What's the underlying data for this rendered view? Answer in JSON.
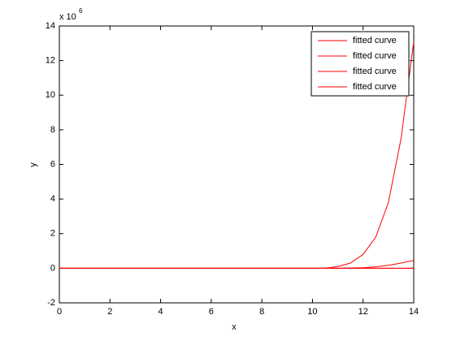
{
  "chart_data": {
    "type": "line",
    "x_label": "x",
    "y_label": "y",
    "y_multiplier": {
      "base": "x 10",
      "exponent": "6"
    },
    "x": [
      0,
      0.5,
      1,
      1.5,
      2,
      2.5,
      3,
      3.5,
      4,
      4.5,
      5,
      5.5,
      6,
      6.5,
      7,
      7.5,
      8,
      8.5,
      9,
      9.5,
      10,
      10.5,
      11,
      11.5,
      12,
      12.5,
      13,
      13.5,
      14
    ],
    "series": [
      {
        "name": "fitted curve",
        "color": "#ff0000",
        "values": [
          0,
          0,
          0,
          0,
          0,
          0,
          0,
          0,
          0,
          0,
          0,
          0,
          0,
          0,
          0,
          0,
          0,
          0,
          0,
          0,
          0,
          0,
          0.1,
          0.3,
          0.8,
          1.8,
          3.8,
          7.5,
          13.1
        ]
      },
      {
        "name": "fitted curve",
        "color": "#ff0000",
        "values": [
          0,
          0,
          0,
          0,
          0,
          0,
          0,
          0,
          0,
          0,
          0,
          0,
          0,
          0,
          0,
          0,
          0,
          0,
          0,
          0,
          0,
          0,
          0,
          0.01,
          0.03,
          0.08,
          0.17,
          0.3,
          0.45
        ]
      },
      {
        "name": "fitted curve",
        "color": "#ff0000",
        "values": [
          0,
          0,
          0,
          0,
          0,
          0,
          0,
          0,
          0,
          0,
          0,
          0,
          0,
          0,
          0,
          0,
          0,
          0,
          0,
          0,
          0,
          0,
          0,
          0,
          0,
          0,
          0,
          0,
          0
        ]
      },
      {
        "name": "fitted curve",
        "color": "#ff0000",
        "values": [
          0,
          0,
          0,
          0,
          0,
          0,
          0,
          0,
          0,
          0,
          0,
          0,
          0,
          0,
          0,
          0,
          0,
          0,
          0,
          0,
          0,
          0,
          0,
          0,
          0,
          0,
          0,
          0,
          0
        ]
      }
    ],
    "xlim": [
      0,
      14
    ],
    "xticks": [
      0,
      2,
      4,
      6,
      8,
      10,
      12,
      14
    ],
    "ylim": [
      -2,
      14
    ],
    "yticks": [
      -2,
      0,
      2,
      4,
      6,
      8,
      10,
      12,
      14
    ],
    "grid": false,
    "legend": "northeast"
  }
}
